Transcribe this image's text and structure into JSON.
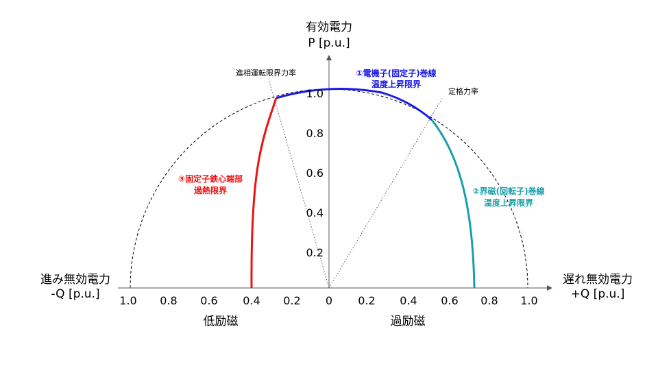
{
  "axes": {
    "p_axis": {
      "title": "有効電力",
      "unit": "P [p.u.]"
    },
    "q_lead": {
      "title": "進み無効電力",
      "unit": "-Q [p.u.]"
    },
    "q_lag": {
      "title": "遅れ無効電力",
      "unit": "+Q [p.u.]"
    },
    "p_ticks": [
      "0.2",
      "0.4",
      "0.6",
      "0.8",
      "1.0"
    ],
    "q_left_ticks": [
      "1.0",
      "0.8",
      "0.6",
      "0.4",
      "0.2"
    ],
    "origin": "0",
    "q_right_ticks": [
      "0.2",
      "0.4",
      "0.6",
      "0.8",
      "1.0"
    ]
  },
  "regions": {
    "under_excitation": "低励磁",
    "over_excitation": "過励磁"
  },
  "annotations": {
    "lead_pf_limit": "進相運転限界力率",
    "rated_pf": "定格力率"
  },
  "limits": {
    "armature": {
      "line1": "①電機子(固定子)巻線",
      "line2": "温度上昇限界",
      "color": "#1a1ae6"
    },
    "field": {
      "line1": "②界磁(回転子)巻線",
      "line2": "温度上昇限界",
      "color": "#17a0a8"
    },
    "core_end": {
      "line1": "③固定子鉄心端部",
      "line2": "過熱限界",
      "color": "#ee1111"
    }
  }
}
